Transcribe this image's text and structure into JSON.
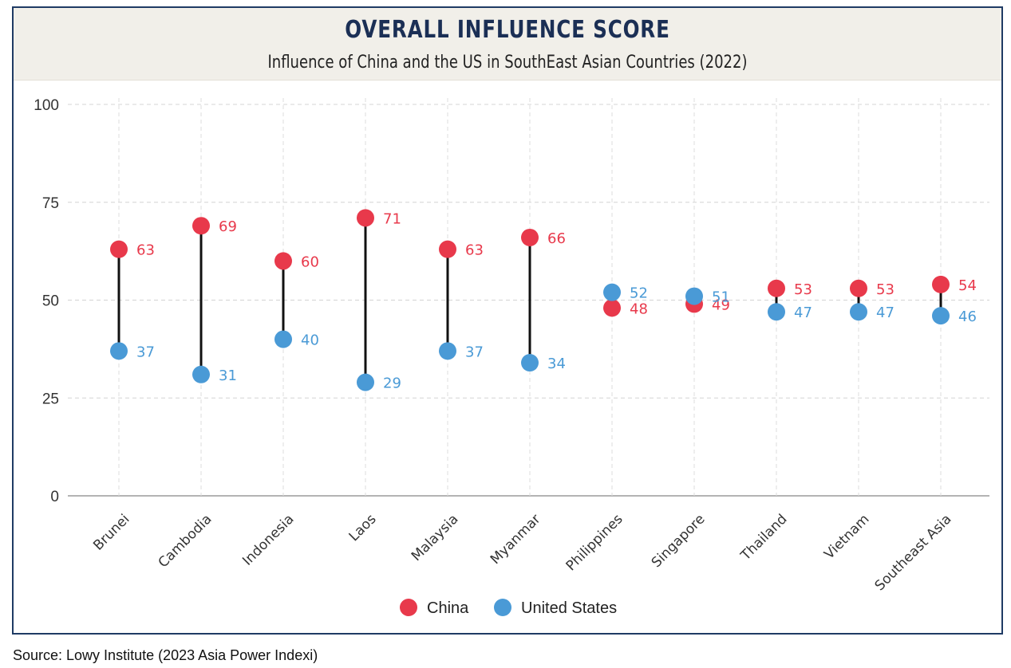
{
  "header": {
    "title": "OVERALL INFLUENCE SCORE",
    "subtitle": "Influence of China and the US in SouthEast Asian Countries (2022)"
  },
  "source": "Source: Lowy Institute (2023 Asia Power Indexi)",
  "colors": {
    "china": "#e8394b",
    "us": "#4a9ad6",
    "connector": "#111111",
    "frame": "#1f3b64"
  },
  "chart_data": {
    "type": "dumbbell",
    "ylim": [
      0,
      100
    ],
    "yticks": [
      "0",
      "25",
      "50",
      "75",
      "100"
    ],
    "grid": true,
    "legend_position": "bottom-center",
    "categories": [
      "Brunei",
      "Cambodia",
      "Indonesia",
      "Laos",
      "Malaysia",
      "Myanmar",
      "Philippines",
      "Singapore",
      "Thailand",
      "Vietnam",
      "Southeast Asia"
    ],
    "series": [
      {
        "name": "China",
        "values": [
          63,
          69,
          60,
          71,
          63,
          66,
          48,
          49,
          53,
          53,
          54
        ]
      },
      {
        "name": "United States",
        "values": [
          37,
          31,
          40,
          29,
          37,
          34,
          52,
          51,
          47,
          47,
          46
        ]
      }
    ]
  }
}
